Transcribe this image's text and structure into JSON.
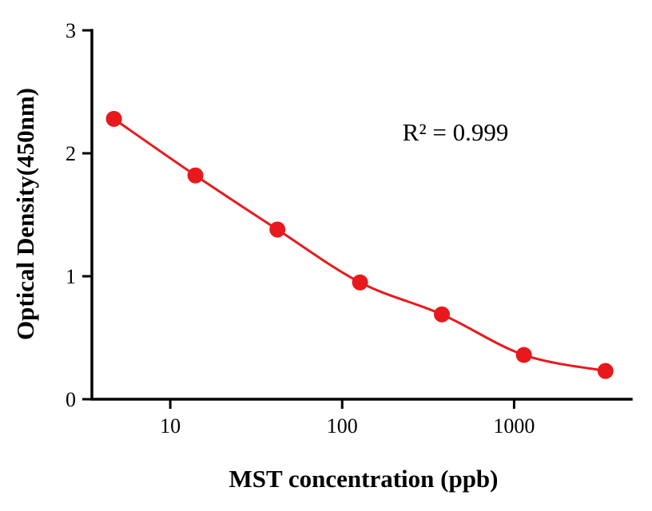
{
  "chart": {
    "ylabel": "Optical Density(450nm)",
    "xlabel": "MST concentration (ppb)",
    "annotation": "R² = 0.999"
  },
  "chart_data": {
    "type": "scatter",
    "subtype": "points-with-smooth-curve",
    "title": "",
    "xlabel": "MST concentration (ppb)",
    "ylabel": "Optical Density(450nm)",
    "annotation": "R² = 0.999",
    "x_scale": "log",
    "x": [
      4.7,
      14,
      42,
      127,
      380,
      1140,
      3400
    ],
    "y": [
      2.28,
      1.82,
      1.38,
      0.95,
      0.69,
      0.36,
      0.23
    ],
    "xlim": [
      3.5,
      4800
    ],
    "ylim": [
      0,
      3
    ],
    "x_ticks": [
      10,
      100,
      1000
    ],
    "y_ticks": [
      0,
      1,
      2,
      3
    ],
    "grid": false,
    "legend": "none",
    "line_color": "#e8191c",
    "marker_color": "#e8191c",
    "axis_color": "#000000",
    "tick_font_size": 26,
    "marker_radius": 10
  }
}
